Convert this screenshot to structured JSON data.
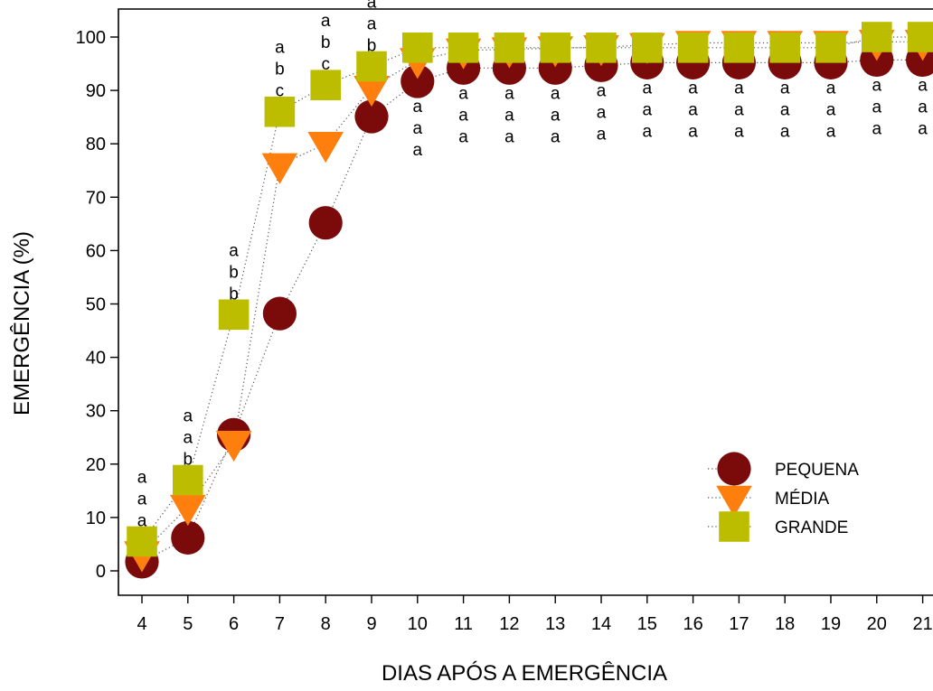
{
  "chart_data": {
    "type": "line",
    "title": "",
    "xlabel": "DIAS APÓS A EMERGÊNCIA",
    "ylabel": "EMERGÊNCIA (%)",
    "x": [
      4,
      5,
      6,
      7,
      8,
      9,
      10,
      11,
      12,
      13,
      14,
      15,
      16,
      17,
      18,
      19,
      20,
      21
    ],
    "x_ticks": [
      "4",
      "5",
      "6",
      "7",
      "8",
      "9",
      "10",
      "11",
      "12",
      "13",
      "14",
      "15",
      "16",
      "17",
      "18",
      "19",
      "20",
      "21"
    ],
    "ylim": [
      0,
      100
    ],
    "y_ticks": [
      "0",
      "10",
      "20",
      "30",
      "40",
      "50",
      "60",
      "70",
      "80",
      "90",
      "100"
    ],
    "grid": false,
    "legend_position": "bottom-right",
    "line_style": "dotted",
    "series": [
      {
        "name": "PEQUENA",
        "marker": "circle",
        "color": "#7B0A0A",
        "values": [
          1.7,
          6.2,
          25.5,
          48.2,
          65.2,
          85.1,
          91.7,
          94.2,
          94.2,
          94.2,
          94.7,
          95.2,
          95.2,
          95.2,
          95.2,
          95.2,
          95.7,
          95.7
        ]
      },
      {
        "name": "MÉDIA",
        "marker": "triangle-down",
        "color": "#FF7F0E",
        "values": [
          3.3,
          12.0,
          24.0,
          76.0,
          80.0,
          90.5,
          95.7,
          97.5,
          97.7,
          97.9,
          98.1,
          98.5,
          98.9,
          98.9,
          98.9,
          98.9,
          99.1,
          99.1
        ]
      },
      {
        "name": "GRANDE",
        "marker": "square",
        "color": "#BDBD00",
        "values": [
          5.5,
          17.0,
          48.0,
          86.0,
          91.0,
          94.5,
          98.0,
          98.0,
          98.0,
          98.0,
          98.0,
          98.0,
          98.0,
          98.0,
          98.0,
          98.0,
          100.0,
          100.0
        ]
      }
    ],
    "annotations": [
      {
        "x": 4,
        "letters": [
          "a",
          "a",
          "a"
        ]
      },
      {
        "x": 5,
        "letters": [
          "a",
          "a",
          "b"
        ]
      },
      {
        "x": 6,
        "letters": [
          "a",
          "b",
          "b"
        ]
      },
      {
        "x": 7,
        "letters": [
          "a",
          "b",
          "c"
        ]
      },
      {
        "x": 8,
        "letters": [
          "a",
          "b",
          "c"
        ]
      },
      {
        "x": 9,
        "letters": [
          "a",
          "a",
          "b"
        ]
      },
      {
        "x": 10,
        "letters": [
          "a",
          "a",
          "a"
        ]
      },
      {
        "x": 11,
        "letters": [
          "a",
          "a",
          "a"
        ]
      },
      {
        "x": 12,
        "letters": [
          "a",
          "a",
          "a"
        ]
      },
      {
        "x": 13,
        "letters": [
          "a",
          "a",
          "a"
        ]
      },
      {
        "x": 14,
        "letters": [
          "a",
          "a",
          "a"
        ]
      },
      {
        "x": 15,
        "letters": [
          "a",
          "a",
          "a"
        ]
      },
      {
        "x": 16,
        "letters": [
          "a",
          "a",
          "a"
        ]
      },
      {
        "x": 17,
        "letters": [
          "a",
          "a",
          "a"
        ]
      },
      {
        "x": 18,
        "letters": [
          "a",
          "a",
          "a"
        ]
      },
      {
        "x": 19,
        "letters": [
          "a",
          "a",
          "a"
        ]
      },
      {
        "x": 20,
        "letters": [
          "a",
          "a",
          "a"
        ]
      },
      {
        "x": 21,
        "letters": [
          "a",
          "a",
          "a"
        ]
      }
    ]
  }
}
